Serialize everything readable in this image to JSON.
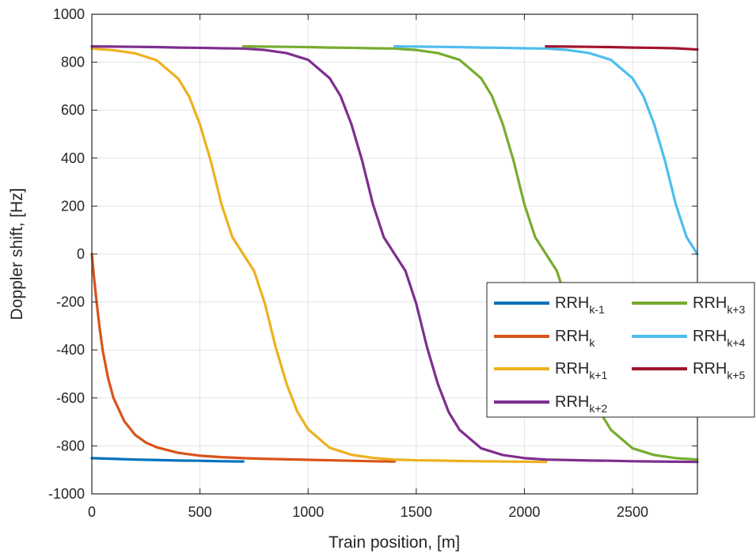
{
  "chart_data": {
    "type": "line",
    "title": "",
    "xlabel": "Train position, [m]",
    "ylabel": "Doppler shift, [Hz]",
    "xlim": [
      0,
      2800
    ],
    "ylim": [
      -1000,
      1000
    ],
    "xticks": [
      0,
      500,
      1000,
      1500,
      2000,
      2500
    ],
    "yticks": [
      -1000,
      -800,
      -600,
      -400,
      -200,
      0,
      200,
      400,
      600,
      800,
      1000
    ],
    "grid": true,
    "legend_position": "lower-right",
    "series": [
      {
        "name": "RRH",
        "subscript": "k-1",
        "color": "#0072BD",
        "x": [
          0,
          100,
          200,
          300,
          400,
          500,
          600,
          700
        ],
        "y": [
          -851,
          -854,
          -857,
          -859,
          -861,
          -862,
          -864,
          -865
        ]
      },
      {
        "name": "RRH",
        "subscript": "k",
        "color": "#D95319",
        "x": [
          0,
          10,
          20,
          35,
          50,
          75,
          100,
          150,
          200,
          250,
          300,
          400,
          500,
          600,
          700,
          800,
          900,
          1000,
          1100,
          1200,
          1300,
          1400
        ],
        "y": [
          0,
          -96,
          -183,
          -301,
          -400,
          -517,
          -600,
          -697,
          -754,
          -786,
          -806,
          -829,
          -841,
          -847,
          -851,
          -854,
          -856,
          -858,
          -860,
          -862,
          -864,
          -865
        ]
      },
      {
        "name": "RRH",
        "subscript": "k+1",
        "color": "#EDB120",
        "x": [
          0,
          100,
          200,
          300,
          400,
          450,
          500,
          550,
          600,
          650,
          700,
          750,
          800,
          850,
          900,
          950,
          1000,
          1100,
          1200,
          1300,
          1400,
          1500,
          1600,
          1700,
          1800,
          1900,
          2000,
          2100
        ],
        "y": [
          857,
          850,
          837,
          808,
          731,
          657,
          540,
          388,
          206,
          70,
          0,
          -70,
          -206,
          -388,
          -540,
          -657,
          -731,
          -808,
          -837,
          -850,
          -857,
          -860,
          -861,
          -863,
          -864,
          -865,
          -866,
          -867
        ]
      },
      {
        "name": "RRH",
        "subscript": "k+2",
        "color": "#7E2F8E",
        "x": [
          0,
          100,
          200,
          300,
          400,
          500,
          600,
          700,
          800,
          900,
          1000,
          1100,
          1150,
          1200,
          1250,
          1300,
          1350,
          1400,
          1450,
          1500,
          1550,
          1600,
          1650,
          1700,
          1800,
          1900,
          2000,
          2100,
          2200,
          2300,
          2400,
          2500,
          2600,
          2700,
          2800
        ],
        "y": [
          866,
          865,
          864,
          863,
          861,
          860,
          858,
          857,
          851,
          838,
          810,
          733,
          659,
          542,
          389,
          207,
          70,
          0,
          -70,
          -207,
          -389,
          -542,
          -659,
          -733,
          -810,
          -838,
          -851,
          -857,
          -859,
          -861,
          -862,
          -864,
          -865,
          -866,
          -867
        ]
      },
      {
        "name": "RRH",
        "subscript": "k+3",
        "color": "#77AC30",
        "x": [
          700,
          800,
          900,
          1000,
          1100,
          1200,
          1300,
          1400,
          1500,
          1600,
          1700,
          1800,
          1850,
          1900,
          1950,
          2000,
          2050,
          2100,
          2150,
          2200,
          2250,
          2300,
          2350,
          2400,
          2500,
          2600,
          2700,
          2800
        ],
        "y": [
          866,
          865,
          864,
          863,
          861,
          860,
          858,
          857,
          851,
          838,
          810,
          733,
          659,
          542,
          389,
          207,
          70,
          0,
          -70,
          -207,
          -389,
          -542,
          -659,
          -733,
          -810,
          -838,
          -851,
          -857
        ]
      },
      {
        "name": "RRH",
        "subscript": "k+4",
        "color": "#4DBEEE",
        "x": [
          1400,
          1500,
          1600,
          1700,
          1800,
          1900,
          2000,
          2100,
          2200,
          2300,
          2400,
          2500,
          2550,
          2600,
          2650,
          2700,
          2750,
          2800
        ],
        "y": [
          866,
          865,
          864,
          863,
          861,
          860,
          858,
          857,
          851,
          838,
          810,
          733,
          659,
          542,
          389,
          207,
          70,
          0
        ]
      },
      {
        "name": "RRH",
        "subscript": "k+5",
        "color": "#A2142F",
        "x": [
          2100,
          2200,
          2300,
          2400,
          2500,
          2600,
          2700,
          2800
        ],
        "y": [
          866,
          865,
          864,
          863,
          861,
          860,
          858,
          853
        ]
      }
    ]
  }
}
